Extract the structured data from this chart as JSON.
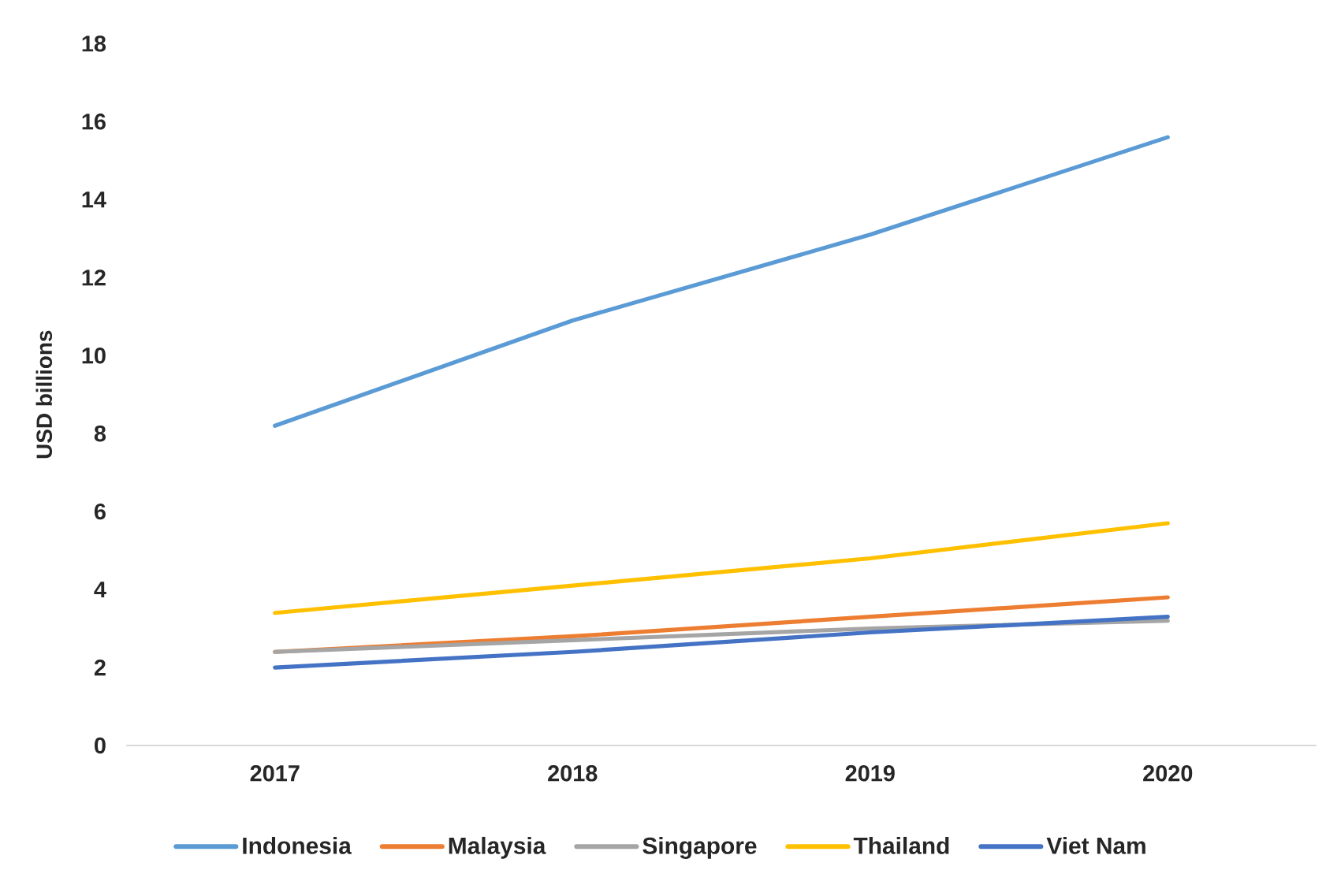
{
  "chart_data": {
    "type": "line",
    "ylabel": "USD billions",
    "categories": [
      "2017",
      "2018",
      "2019",
      "2020"
    ],
    "series": [
      {
        "name": "Indonesia",
        "color": "#5b9bd5",
        "values": [
          8.2,
          10.9,
          13.1,
          15.6
        ]
      },
      {
        "name": "Malaysia",
        "color": "#ed7d31",
        "values": [
          2.4,
          2.8,
          3.3,
          3.8
        ]
      },
      {
        "name": "Singapore",
        "color": "#a5a5a5",
        "values": [
          2.4,
          2.7,
          3.0,
          3.2
        ]
      },
      {
        "name": "Thailand",
        "color": "#ffc000",
        "values": [
          3.4,
          4.1,
          4.8,
          5.7
        ]
      },
      {
        "name": "Viet Nam",
        "color": "#4472c4",
        "values": [
          2.0,
          2.4,
          2.9,
          3.3
        ]
      }
    ],
    "ylim": [
      0,
      18
    ],
    "yticks": [
      0,
      2,
      4,
      6,
      8,
      10,
      12,
      14,
      16,
      18
    ],
    "legend": "bottom",
    "grid": false,
    "marker": "none",
    "line_style": "solid"
  }
}
